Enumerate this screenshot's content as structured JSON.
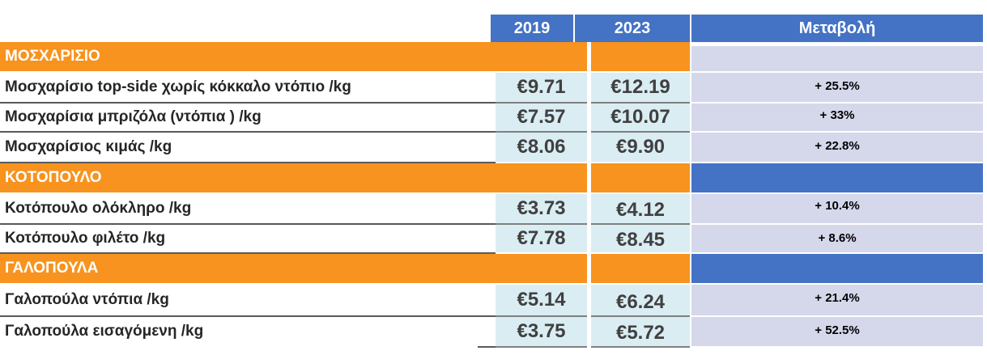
{
  "table": {
    "headers": {
      "y2019": "2019",
      "y2023": "2023",
      "change": "Μεταβολή"
    },
    "sections": [
      {
        "category": "ΜΟΣΧΑΡΙΣΙΟ",
        "rows": [
          {
            "label": "Μοσχαρίσιο top-side χωρίς κόκκαλο ντόπιο /kg",
            "v2019": "€9.71",
            "v2023": "€12.19",
            "change": "+ 25.5%"
          },
          {
            "label": "Μοσχαρίσια μπριζόλα (ντόπια ) /kg",
            "v2019": "€7.57",
            "v2023": "€10.07",
            "change": "+ 33%"
          },
          {
            "label": "Μοσχαρίσιος κιμάς /kg",
            "v2019": "€8.06",
            "v2023": "€9.90",
            "change": "+ 22.8%"
          }
        ]
      },
      {
        "category": "ΚΟΤΟΠΟΥΛΟ",
        "rows": [
          {
            "label": "Κοτόπουλο ολόκληρο /kg",
            "v2019": "€3.73",
            "v2023": "€4.12",
            "change": "+ 10.4%"
          },
          {
            "label": "Κοτόπουλο φιλέτο /kg",
            "v2019": "€7.78",
            "v2023": "€8.45",
            "change": "+ 8.6%"
          }
        ]
      },
      {
        "category": "ΓΑΛΟΠΟΥΛΑ",
        "rows": [
          {
            "label": "Γαλοπούλα ντόπια /kg",
            "v2019": "€5.14",
            "v2023": "€6.24",
            "change": "+ 21.4%"
          },
          {
            "label": "Γαλοπούλα εισαγόμενη /kg",
            "v2019": "€3.75",
            "v2023": "€5.72",
            "change": "+ 52.5%"
          }
        ]
      }
    ]
  }
}
